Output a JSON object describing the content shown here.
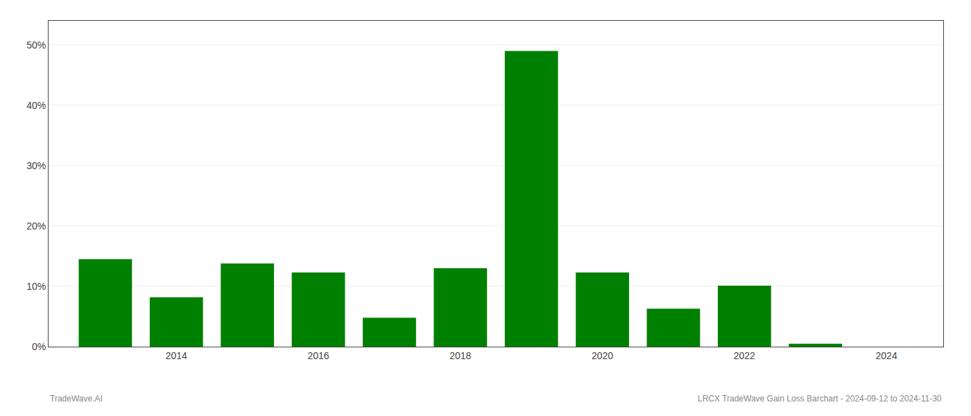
{
  "chart_data": {
    "type": "bar",
    "x": [
      2013,
      2014,
      2015,
      2016,
      2017,
      2018,
      2019,
      2020,
      2021,
      2022,
      2023
    ],
    "values": [
      0.145,
      0.082,
      0.138,
      0.123,
      0.048,
      0.13,
      0.49,
      0.123,
      0.063,
      0.101,
      0.005
    ],
    "color": "#008000",
    "xlim": [
      2012.2,
      2024.8
    ],
    "xticks": [
      2014,
      2016,
      2018,
      2020,
      2022,
      2024
    ],
    "ylim": [
      0,
      0.54
    ],
    "yticks": [
      {
        "value": 0.0,
        "label": "0%"
      },
      {
        "value": 0.1,
        "label": "10%"
      },
      {
        "value": 0.2,
        "label": "20%"
      },
      {
        "value": 0.3,
        "label": "30%"
      },
      {
        "value": 0.4,
        "label": "40%"
      },
      {
        "value": 0.5,
        "label": "50%"
      }
    ],
    "grid": true,
    "annotations": [
      "TradeWave.AI",
      "LRCX TradeWave Gain Loss Barchart - 2024-09-12 to 2024-11-30"
    ]
  }
}
